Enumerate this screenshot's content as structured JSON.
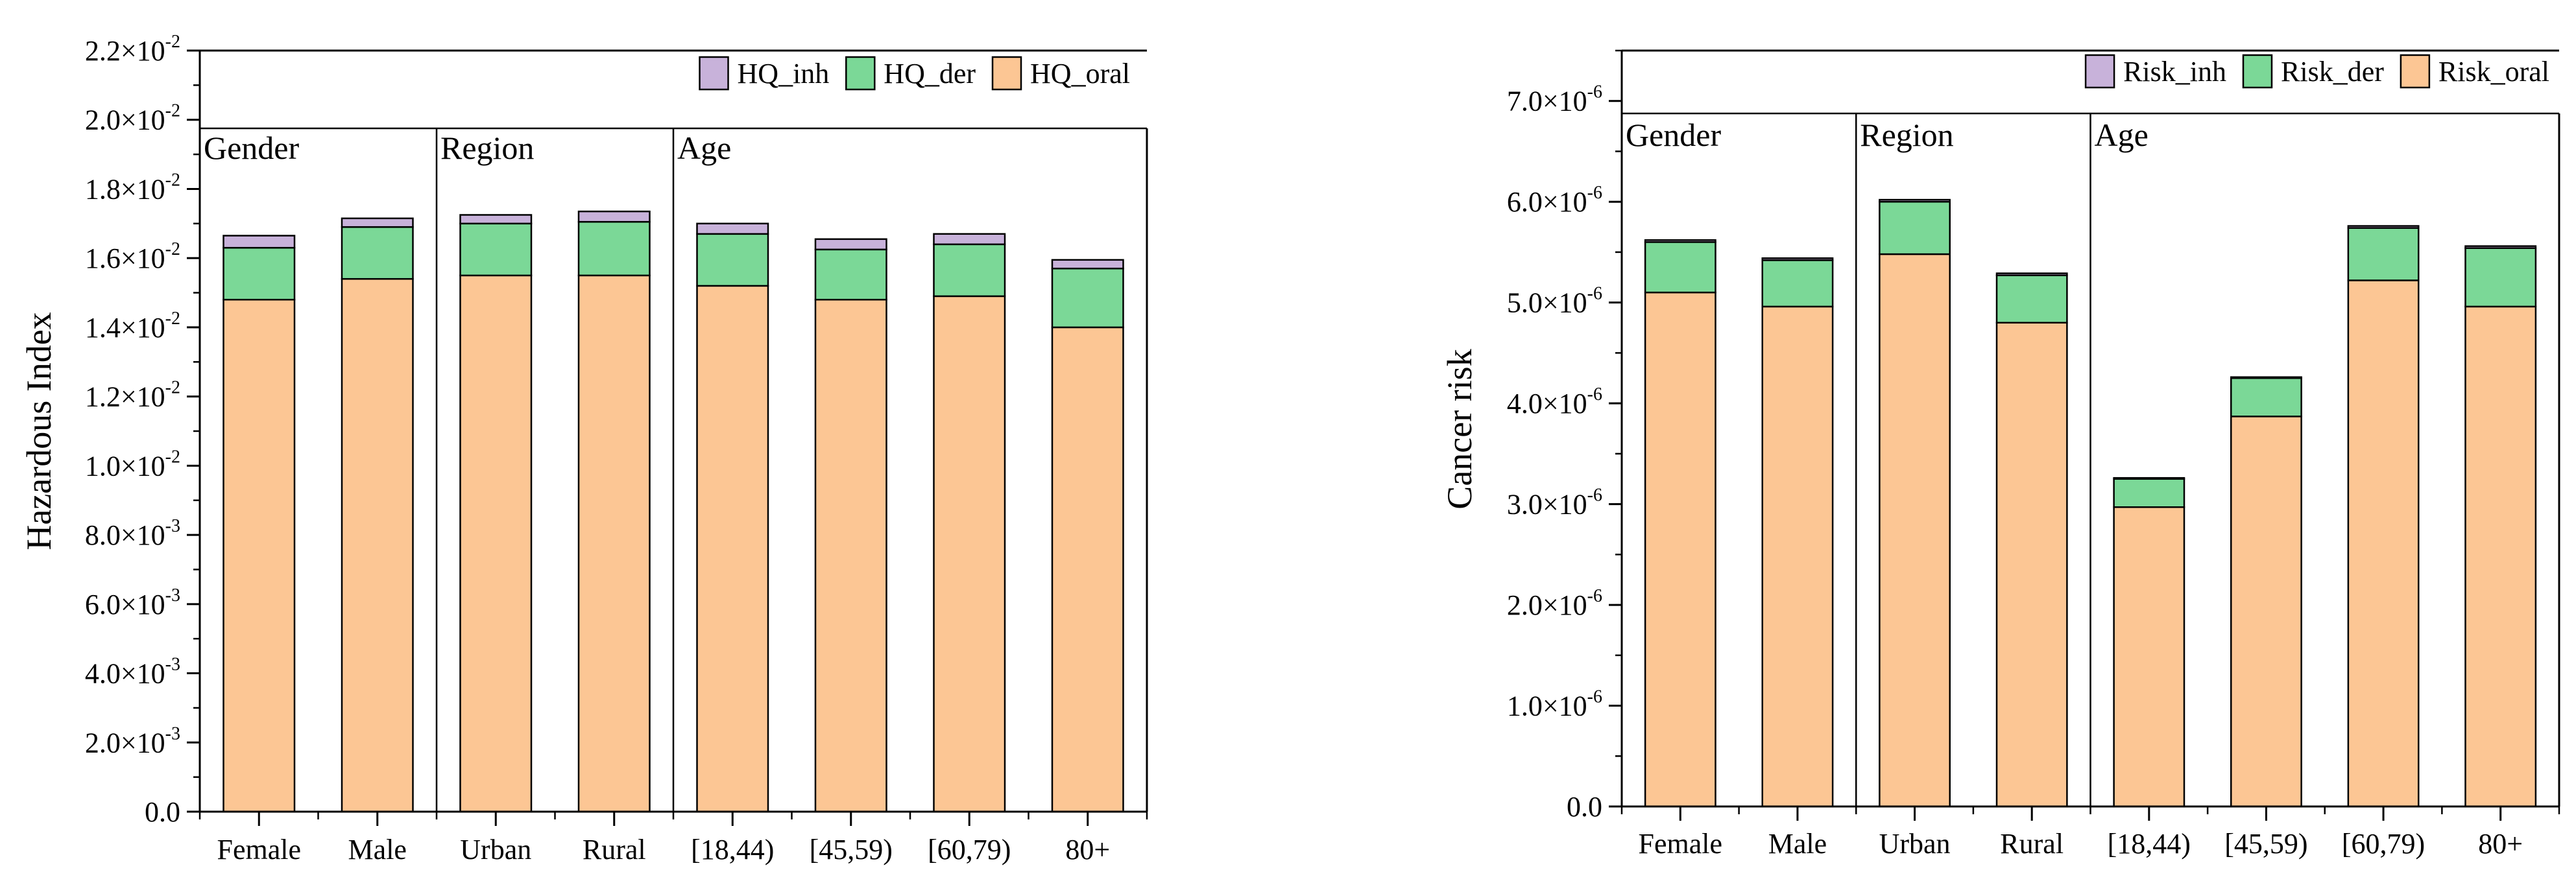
{
  "colors": {
    "oral": "#FCC694",
    "der": "#7BD897",
    "inh": "#C8B2DA",
    "stroke": "#000000"
  },
  "chart_data": [
    {
      "type": "bar",
      "stacked": true,
      "ylabel": "Hazardous Index",
      "categories": [
        "Female",
        "Male",
        "Urban",
        "Rural",
        "[18,44)",
        "[45,59)",
        "[60,79)",
        "80+"
      ],
      "groups": [
        {
          "label": "Gender",
          "start": 0,
          "end": 1
        },
        {
          "label": "Region",
          "start": 2,
          "end": 3
        },
        {
          "label": "Age",
          "start": 4,
          "end": 7
        }
      ],
      "ylim": [
        0,
        0.022
      ],
      "ticks": [
        {
          "value": 0.0,
          "mantissa": "0.0",
          "exp": ""
        },
        {
          "value": 0.002,
          "mantissa": "2.0×10",
          "exp": "-3"
        },
        {
          "value": 0.004,
          "mantissa": "4.0×10",
          "exp": "-3"
        },
        {
          "value": 0.006,
          "mantissa": "6.0×10",
          "exp": "-3"
        },
        {
          "value": 0.008,
          "mantissa": "8.0×10",
          "exp": "-3"
        },
        {
          "value": 0.01,
          "mantissa": "1.0×10",
          "exp": "-2"
        },
        {
          "value": 0.012,
          "mantissa": "1.2×10",
          "exp": "-2"
        },
        {
          "value": 0.014,
          "mantissa": "1.4×10",
          "exp": "-2"
        },
        {
          "value": 0.016,
          "mantissa": "1.6×10",
          "exp": "-2"
        },
        {
          "value": 0.018,
          "mantissa": "1.8×10",
          "exp": "-2"
        },
        {
          "value": 0.02,
          "mantissa": "2.0×10",
          "exp": "-2"
        },
        {
          "value": 0.022,
          "mantissa": "2.2×10",
          "exp": "-2"
        }
      ],
      "legend": [
        "HQ_inh",
        "HQ_der",
        "HQ_oral"
      ],
      "series": [
        {
          "name": "HQ_oral",
          "key": "oral",
          "values": [
            0.0148,
            0.0154,
            0.0155,
            0.0155,
            0.0152,
            0.0148,
            0.0149,
            0.014
          ]
        },
        {
          "name": "HQ_der",
          "key": "der",
          "values": [
            0.0015,
            0.0015,
            0.0015,
            0.00155,
            0.0015,
            0.00145,
            0.0015,
            0.0017
          ]
        },
        {
          "name": "HQ_inh",
          "key": "inh",
          "values": [
            0.00035,
            0.00025,
            0.00025,
            0.0003,
            0.0003,
            0.0003,
            0.0003,
            0.00025
          ]
        }
      ]
    },
    {
      "type": "bar",
      "stacked": true,
      "ylabel": "Cancer risk",
      "categories": [
        "Female",
        "Male",
        "Urban",
        "Rural",
        "[18,44)",
        "[45,59)",
        "[60,79)",
        "80+"
      ],
      "groups": [
        {
          "label": "Gender",
          "start": 0,
          "end": 1
        },
        {
          "label": "Region",
          "start": 2,
          "end": 3
        },
        {
          "label": "Age",
          "start": 4,
          "end": 7
        }
      ],
      "ylim": [
        0,
        7.5e-06
      ],
      "ticks": [
        {
          "value": 0.0,
          "mantissa": "0.0",
          "exp": ""
        },
        {
          "value": 1e-06,
          "mantissa": "1.0×10",
          "exp": "-6"
        },
        {
          "value": 2e-06,
          "mantissa": "2.0×10",
          "exp": "-6"
        },
        {
          "value": 3e-06,
          "mantissa": "3.0×10",
          "exp": "-6"
        },
        {
          "value": 4e-06,
          "mantissa": "4.0×10",
          "exp": "-6"
        },
        {
          "value": 5e-06,
          "mantissa": "5.0×10",
          "exp": "-6"
        },
        {
          "value": 6e-06,
          "mantissa": "6.0×10",
          "exp": "-6"
        },
        {
          "value": 7e-06,
          "mantissa": "7.0×10",
          "exp": "-6"
        }
      ],
      "legend": [
        "Risk_inh",
        "Risk_der",
        "Risk_oral"
      ],
      "series": [
        {
          "name": "Risk_oral",
          "key": "oral",
          "values": [
            5.1e-06,
            4.96e-06,
            5.48e-06,
            4.8e-06,
            2.97e-06,
            3.87e-06,
            5.22e-06,
            4.96e-06
          ]
        },
        {
          "name": "Risk_der",
          "key": "der",
          "values": [
            5e-07,
            4.6e-07,
            5.2e-07,
            4.7e-07,
            2.8e-07,
            3.8e-07,
            5.2e-07,
            5.8e-07
          ]
        },
        {
          "name": "Risk_inh",
          "key": "inh",
          "values": [
            2e-08,
            2e-08,
            2e-08,
            2e-08,
            1e-08,
            1e-08,
            2e-08,
            2e-08
          ]
        }
      ]
    }
  ]
}
